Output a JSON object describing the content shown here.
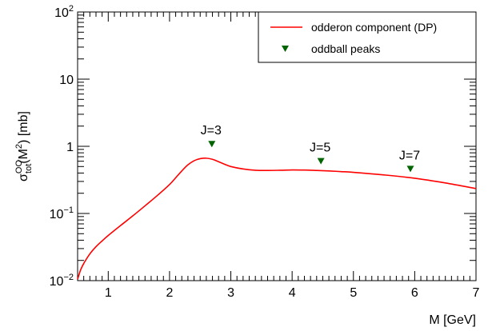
{
  "chart_data": {
    "type": "line",
    "xlabel": "M [GeV]",
    "ylabel": {
      "base": "σ",
      "sup": "OO",
      "sub": "tot",
      "tail": "(M",
      "tail_sup": "2",
      "tail_end": ") [mb]"
    },
    "xlim": [
      0.5,
      7.0
    ],
    "ylim": [
      0.01,
      100
    ],
    "yscale": "log",
    "grid": false,
    "legend_placement": "top-right",
    "x_ticks": [
      {
        "value": 1,
        "label": "1"
      },
      {
        "value": 2,
        "label": "2"
      },
      {
        "value": 3,
        "label": "3"
      },
      {
        "value": 4,
        "label": "4"
      },
      {
        "value": 5,
        "label": "5"
      },
      {
        "value": 6,
        "label": "6"
      },
      {
        "value": 7,
        "label": "7"
      }
    ],
    "y_ticks": [
      {
        "value": 0.01,
        "base": "10",
        "sup": "−2"
      },
      {
        "value": 0.1,
        "base": "10",
        "sup": "−1"
      },
      {
        "value": 1,
        "base": "1",
        "sup": ""
      },
      {
        "value": 10,
        "base": "10",
        "sup": ""
      },
      {
        "value": 100,
        "base": "10",
        "sup": "2"
      }
    ],
    "series": [
      {
        "name": "odderon component (DP)",
        "kind": "line",
        "color": "#ff0000",
        "x": [
          0.5,
          0.52,
          0.55,
          0.6,
          0.7,
          0.8,
          0.9,
          1.0,
          1.2,
          1.4,
          1.6,
          1.8,
          2.0,
          2.1,
          2.2,
          2.3,
          2.4,
          2.5,
          2.6,
          2.7,
          2.8,
          2.9,
          3.0,
          3.2,
          3.4,
          3.6,
          3.8,
          4.0,
          4.2,
          4.4,
          4.6,
          4.8,
          5.0,
          5.5,
          6.0,
          6.5,
          7.0
        ],
        "y": [
          0.0105,
          0.012,
          0.0145,
          0.018,
          0.025,
          0.032,
          0.039,
          0.047,
          0.066,
          0.092,
          0.13,
          0.185,
          0.27,
          0.34,
          0.43,
          0.53,
          0.61,
          0.655,
          0.665,
          0.64,
          0.59,
          0.54,
          0.5,
          0.46,
          0.44,
          0.437,
          0.44,
          0.445,
          0.443,
          0.437,
          0.43,
          0.42,
          0.41,
          0.375,
          0.335,
          0.285,
          0.235
        ]
      },
      {
        "name": "oddball peaks",
        "kind": "marker",
        "marker": "triangle-down",
        "color": "#006400",
        "x": [
          2.69,
          4.47,
          5.93
        ],
        "y": [
          1.08,
          0.6,
          0.46
        ],
        "labels": [
          "J=3",
          "J=5",
          "J=7"
        ]
      }
    ]
  }
}
